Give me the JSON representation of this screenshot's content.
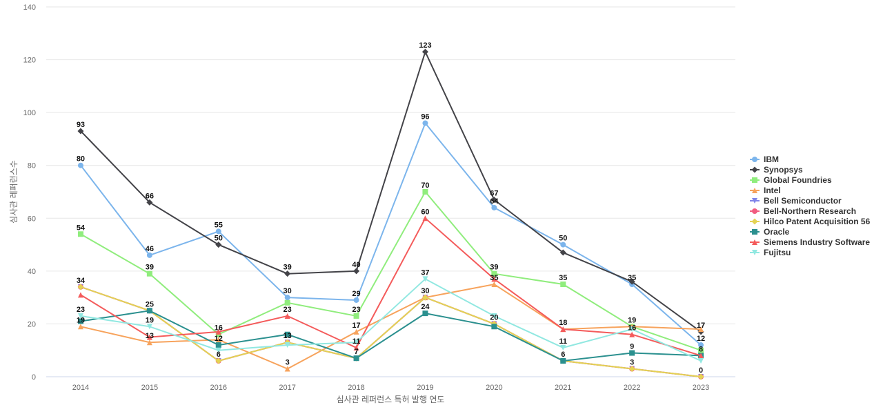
{
  "chart_data": {
    "type": "line",
    "x": [
      "2014",
      "2015",
      "2016",
      "2017",
      "2018",
      "2019",
      "2020",
      "2021",
      "2022",
      "2023"
    ],
    "xlabel": "심사관 레퍼런스 특허 발행 연도",
    "ylabel": "심사관 레퍼런스수",
    "ylim": [
      0,
      140
    ],
    "yticks": [
      0,
      20,
      40,
      60,
      80,
      100,
      120,
      140
    ],
    "grid": true,
    "legend": "right",
    "series": [
      {
        "name": "IBM",
        "color": "#7cb5ec",
        "marker": "circle",
        "values": [
          80,
          46,
          55,
          30,
          29,
          96,
          64,
          50,
          35,
          12
        ]
      },
      {
        "name": "Synopsys",
        "color": "#434348",
        "marker": "diamond",
        "values": [
          93,
          66,
          50,
          39,
          40,
          123,
          67,
          47,
          36,
          17
        ]
      },
      {
        "name": "Global Foundries",
        "color": "#90ed7d",
        "marker": "square",
        "values": [
          54,
          39,
          16,
          28,
          23,
          70,
          39,
          35,
          19,
          10
        ]
      },
      {
        "name": "Intel",
        "color": "#f7a35c",
        "marker": "triangle",
        "values": [
          19,
          13,
          14,
          3,
          17,
          30,
          35,
          18,
          19,
          18
        ]
      },
      {
        "name": "Bell Semiconductor",
        "color": "#8085e9",
        "marker": "triangle-down",
        "values": [
          34,
          25,
          6,
          13,
          7,
          30,
          20,
          6,
          3,
          0
        ]
      },
      {
        "name": "Bell-Northern Research",
        "color": "#f15c80",
        "marker": "circle",
        "values": [
          34,
          25,
          6,
          13,
          7,
          30,
          20,
          6,
          3,
          0
        ]
      },
      {
        "name": "Hilco Patent Acquisition 56",
        "color": "#e4d354",
        "marker": "diamond",
        "values": [
          34,
          25,
          6,
          13,
          7,
          30,
          20,
          6,
          3,
          0
        ]
      },
      {
        "name": "Oracle",
        "color": "#2b908f",
        "marker": "square",
        "values": [
          21,
          25,
          12,
          16,
          7,
          24,
          19,
          6,
          9,
          8
        ]
      },
      {
        "name": "Siemens Industry Software",
        "color": "#f45b5b",
        "marker": "triangle",
        "values": [
          31,
          15,
          17,
          23,
          11,
          60,
          37,
          18,
          16,
          8
        ]
      },
      {
        "name": "Fujitsu",
        "color": "#91e8e1",
        "marker": "triangle-down",
        "values": [
          23,
          19,
          10,
          12,
          13,
          37,
          23,
          11,
          18,
          6
        ]
      }
    ],
    "data_labels": [
      {
        "x": "2014",
        "value": 93
      },
      {
        "x": "2014",
        "value": 80
      },
      {
        "x": "2014",
        "value": 54
      },
      {
        "x": "2014",
        "value": 34
      },
      {
        "x": "2014",
        "value": 23
      },
      {
        "x": "2014",
        "value": 19
      },
      {
        "x": "2015",
        "value": 66
      },
      {
        "x": "2015",
        "value": 46
      },
      {
        "x": "2015",
        "value": 39
      },
      {
        "x": "2015",
        "value": 25
      },
      {
        "x": "2015",
        "value": 19
      },
      {
        "x": "2015",
        "value": 13
      },
      {
        "x": "2016",
        "value": 55
      },
      {
        "x": "2016",
        "value": 50
      },
      {
        "x": "2016",
        "value": 16
      },
      {
        "x": "2016",
        "value": 12
      },
      {
        "x": "2016",
        "value": 6
      },
      {
        "x": "2017",
        "value": 39
      },
      {
        "x": "2017",
        "value": 30
      },
      {
        "x": "2017",
        "value": 23
      },
      {
        "x": "2017",
        "value": 13
      },
      {
        "x": "2017",
        "value": 3
      },
      {
        "x": "2018",
        "value": 40
      },
      {
        "x": "2018",
        "value": 29
      },
      {
        "x": "2018",
        "value": 23
      },
      {
        "x": "2018",
        "value": 17
      },
      {
        "x": "2018",
        "value": 11
      },
      {
        "x": "2018",
        "value": 7
      },
      {
        "x": "2019",
        "value": 123
      },
      {
        "x": "2019",
        "value": 96
      },
      {
        "x": "2019",
        "value": 70
      },
      {
        "x": "2019",
        "value": 60
      },
      {
        "x": "2019",
        "value": 37
      },
      {
        "x": "2019",
        "value": 30
      },
      {
        "x": "2019",
        "value": 24
      },
      {
        "x": "2020",
        "value": 67
      },
      {
        "x": "2020",
        "value": 64
      },
      {
        "x": "2020",
        "value": 39
      },
      {
        "x": "2020",
        "value": 35
      },
      {
        "x": "2020",
        "value": 20
      },
      {
        "x": "2021",
        "value": 50
      },
      {
        "x": "2021",
        "value": 35
      },
      {
        "x": "2021",
        "value": 18
      },
      {
        "x": "2021",
        "value": 11
      },
      {
        "x": "2021",
        "value": 6
      },
      {
        "x": "2022",
        "value": 35
      },
      {
        "x": "2022",
        "value": 19
      },
      {
        "x": "2022",
        "value": 16
      },
      {
        "x": "2022",
        "value": 9
      },
      {
        "x": "2022",
        "value": 3
      },
      {
        "x": "2023",
        "value": 17
      },
      {
        "x": "2023",
        "value": 12
      },
      {
        "x": "2023",
        "value": 8
      },
      {
        "x": "2023",
        "value": 0
      }
    ]
  }
}
